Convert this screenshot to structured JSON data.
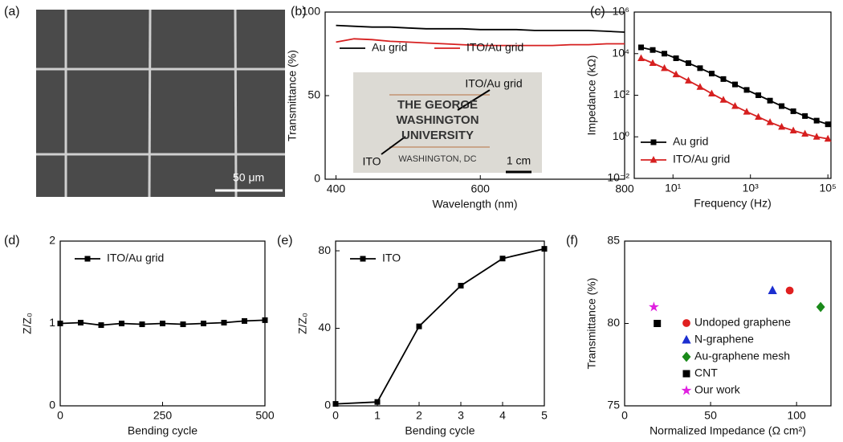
{
  "chart_data": [
    {
      "type": "image",
      "panel_label": "(a)",
      "scale_bar": "50 μm"
    },
    {
      "type": "line",
      "panel_label": "(b)",
      "xlabel": "Wavelength (nm)",
      "ylabel": "Transmittance (%)",
      "x": [
        400,
        425,
        450,
        475,
        500,
        525,
        550,
        575,
        600,
        625,
        650,
        675,
        700,
        725,
        750,
        775,
        800
      ],
      "series": [
        {
          "name": "Au grid",
          "color": "#000000",
          "values": [
            92,
            91.5,
            91,
            91,
            90.5,
            90,
            90,
            90,
            89.5,
            89.5,
            89.5,
            89,
            89,
            89,
            89,
            88.5,
            88
          ]
        },
        {
          "name": "ITO/Au grid",
          "color": "#d62020",
          "values": [
            82,
            84,
            83.5,
            82.5,
            82,
            81.5,
            81,
            80.5,
            80,
            80,
            80,
            80,
            80,
            80.5,
            80.5,
            81,
            81
          ]
        }
      ],
      "xlim": [
        385,
        800
      ],
      "xticks": [
        400,
        600,
        800
      ],
      "ylim": [
        0,
        100
      ],
      "yticks": [
        0,
        50,
        100
      ],
      "legend": "top",
      "inset_texts": [
        "ITO/Au grid",
        "THE GEORGE",
        "WASHINGTON",
        "UNIVERSITY",
        "WASHINGTON, DC",
        "ITO",
        "1 cm"
      ]
    },
    {
      "type": "line",
      "panel_label": "(c)",
      "xlabel": "Frequency (Hz)",
      "ylabel": "Impedance (kΩ)",
      "log": true,
      "x": [
        1.5,
        3,
        6,
        12,
        25,
        50,
        100,
        200,
        400,
        800,
        1600,
        3200,
        6400,
        12800,
        25600,
        51200,
        100000
      ],
      "series": [
        {
          "name": "Au grid",
          "color": "#000000",
          "marker": "square",
          "values": [
            20000,
            15000,
            10000,
            6000,
            3500,
            2000,
            1100,
            600,
            330,
            180,
            100,
            55,
            30,
            17,
            10,
            6,
            4
          ]
        },
        {
          "name": "ITO/Au grid",
          "color": "#d62020",
          "marker": "triangle",
          "values": [
            6000,
            3500,
            2000,
            1000,
            500,
            250,
            120,
            60,
            30,
            16,
            9,
            5,
            3,
            2,
            1.4,
            1,
            0.8
          ]
        }
      ],
      "xlim": [
        1,
        120000
      ],
      "xticks": [
        {
          "value": 10,
          "label": "10¹"
        },
        {
          "value": 1000,
          "label": "10³"
        },
        {
          "value": 100000,
          "label": "10⁵"
        }
      ],
      "ylim": [
        0.01,
        1000000
      ],
      "yticks": [
        {
          "value": 0.01,
          "label": "10⁻²"
        },
        {
          "value": 1,
          "label": "10⁰"
        },
        {
          "value": 100,
          "label": "10²"
        },
        {
          "value": 10000,
          "label": "10⁴"
        },
        {
          "value": 1000000,
          "label": "10⁶"
        }
      ],
      "legend": "bottom-left"
    },
    {
      "type": "line",
      "panel_label": "(d)",
      "xlabel": "Bending cycle",
      "ylabel": "Z/Z₀",
      "x": [
        0,
        50,
        100,
        150,
        200,
        250,
        300,
        350,
        400,
        450,
        500
      ],
      "series": [
        {
          "name": "ITO/Au grid",
          "color": "#000000",
          "marker": "square",
          "values": [
            1,
            1.01,
            0.98,
            1,
            0.99,
            1,
            0.99,
            1,
            1.01,
            1.03,
            1.04
          ]
        }
      ],
      "xlim": [
        0,
        500
      ],
      "xticks": [
        0,
        250,
        500
      ],
      "ylim": [
        0,
        2
      ],
      "yticks": [
        0,
        1,
        2
      ],
      "legend": "top-left"
    },
    {
      "type": "line",
      "panel_label": "(e)",
      "xlabel": "Bending cycle",
      "ylabel": "Z/Z₀",
      "x": [
        0,
        1,
        2,
        3,
        4,
        5
      ],
      "series": [
        {
          "name": "ITO",
          "color": "#000000",
          "marker": "square",
          "values": [
            1,
            2,
            41,
            62,
            76,
            81
          ]
        }
      ],
      "xlim": [
        0,
        5
      ],
      "xticks": [
        0,
        1,
        2,
        3,
        4,
        5
      ],
      "ylim": [
        0,
        85
      ],
      "yticks": [
        0,
        40,
        80
      ],
      "legend": "top-left"
    },
    {
      "type": "scatter",
      "panel_label": "(f)",
      "xlabel": "Normalized Impedance (Ω cm²)",
      "ylabel": "Transmittance (%)",
      "series": [
        {
          "name": "Undoped graphene",
          "color": "#e02020",
          "marker": "circle",
          "x": [
            96
          ],
          "values": [
            82
          ]
        },
        {
          "name": "N-graphene",
          "color": "#1c2fd0",
          "marker": "triangle",
          "x": [
            86
          ],
          "values": [
            82
          ]
        },
        {
          "name": "Au-graphene mesh",
          "color": "#1a8a1a",
          "marker": "diamond",
          "x": [
            114
          ],
          "values": [
            81
          ]
        },
        {
          "name": "CNT",
          "color": "#000000",
          "marker": "square",
          "x": [
            19
          ],
          "values": [
            80
          ]
        },
        {
          "name": "Our work",
          "color": "#e020e0",
          "marker": "star",
          "x": [
            17
          ],
          "values": [
            81
          ]
        }
      ],
      "xlim": [
        0,
        120
      ],
      "xticks": [
        0,
        50,
        100
      ],
      "ylim": [
        75,
        85
      ],
      "yticks": [
        75,
        80,
        85
      ],
      "legend": "bottom-right"
    }
  ]
}
